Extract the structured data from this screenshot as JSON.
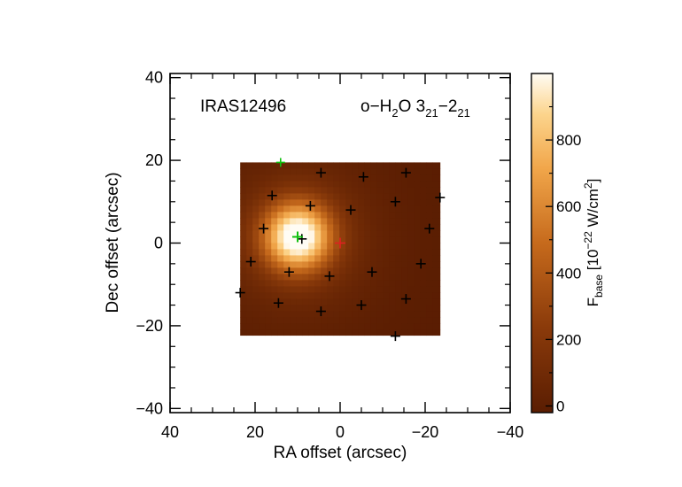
{
  "chart_data": {
    "type": "heatmap",
    "source_label": "IRAS12496",
    "line_label": {
      "base": "o−H",
      "sub1": "2",
      "mid": "O 3",
      "sub2": "21",
      "dash": "−2",
      "sub3": "21"
    },
    "xlabel": "RA offset (arcsec)",
    "ylabel": "Dec offset (arcsec)",
    "xlim": [
      40,
      -40
    ],
    "ylim": [
      -41,
      41
    ],
    "xticks": [
      40,
      20,
      0,
      -20,
      -40
    ],
    "yticks": [
      40,
      20,
      0,
      -20,
      -40
    ],
    "xtick_labels": [
      "40",
      "20",
      "0",
      "−20",
      "−40"
    ],
    "ytick_labels": [
      "40",
      "20",
      "0",
      "−20",
      "−40"
    ],
    "map_extent": {
      "x": [
        23.5,
        -23.5
      ],
      "y": [
        -22.3,
        19.5
      ]
    },
    "peak": {
      "x": 10,
      "y": 1.5,
      "value": 1000
    },
    "colorbar": {
      "label_main": "F",
      "label_sub": "base",
      "label_rest": " [10",
      "label_exp": "−22",
      "label_unit": " W/cm",
      "label_unit_exp": "2",
      "label_close": "]",
      "range": [
        -20,
        1000
      ],
      "ticks": [
        0,
        200,
        400,
        600,
        800
      ],
      "tick_labels": [
        "0",
        "200",
        "400",
        "600",
        "800"
      ]
    },
    "markers": {
      "center": {
        "x": 0,
        "y": 0,
        "color": "#e02020"
      },
      "peak_spaxel": {
        "x": 10,
        "y": 1.5,
        "color": "#10c010"
      },
      "edge_spaxel": {
        "x": 14,
        "y": 19.5,
        "color": "#10c010"
      },
      "spaxels": [
        [
          -13,
          -22.5
        ],
        [
          -5,
          -15
        ],
        [
          4.5,
          -16.5
        ],
        [
          14.5,
          -14.5
        ],
        [
          -15.5,
          -13.5
        ],
        [
          23.5,
          -12
        ],
        [
          12,
          -7
        ],
        [
          2.5,
          -8
        ],
        [
          -7.5,
          -7
        ],
        [
          21,
          -4.5
        ],
        [
          -19,
          -5
        ],
        [
          18,
          3.5
        ],
        [
          9,
          1
        ],
        [
          -21,
          3.5
        ],
        [
          -2.5,
          8
        ],
        [
          7,
          9
        ],
        [
          -13,
          10
        ],
        [
          16,
          11.5
        ],
        [
          -23.5,
          11
        ],
        [
          -5.5,
          16
        ],
        [
          4.5,
          17
        ],
        [
          -15.5,
          17
        ]
      ],
      "spaxel_color": "#000000"
    }
  }
}
